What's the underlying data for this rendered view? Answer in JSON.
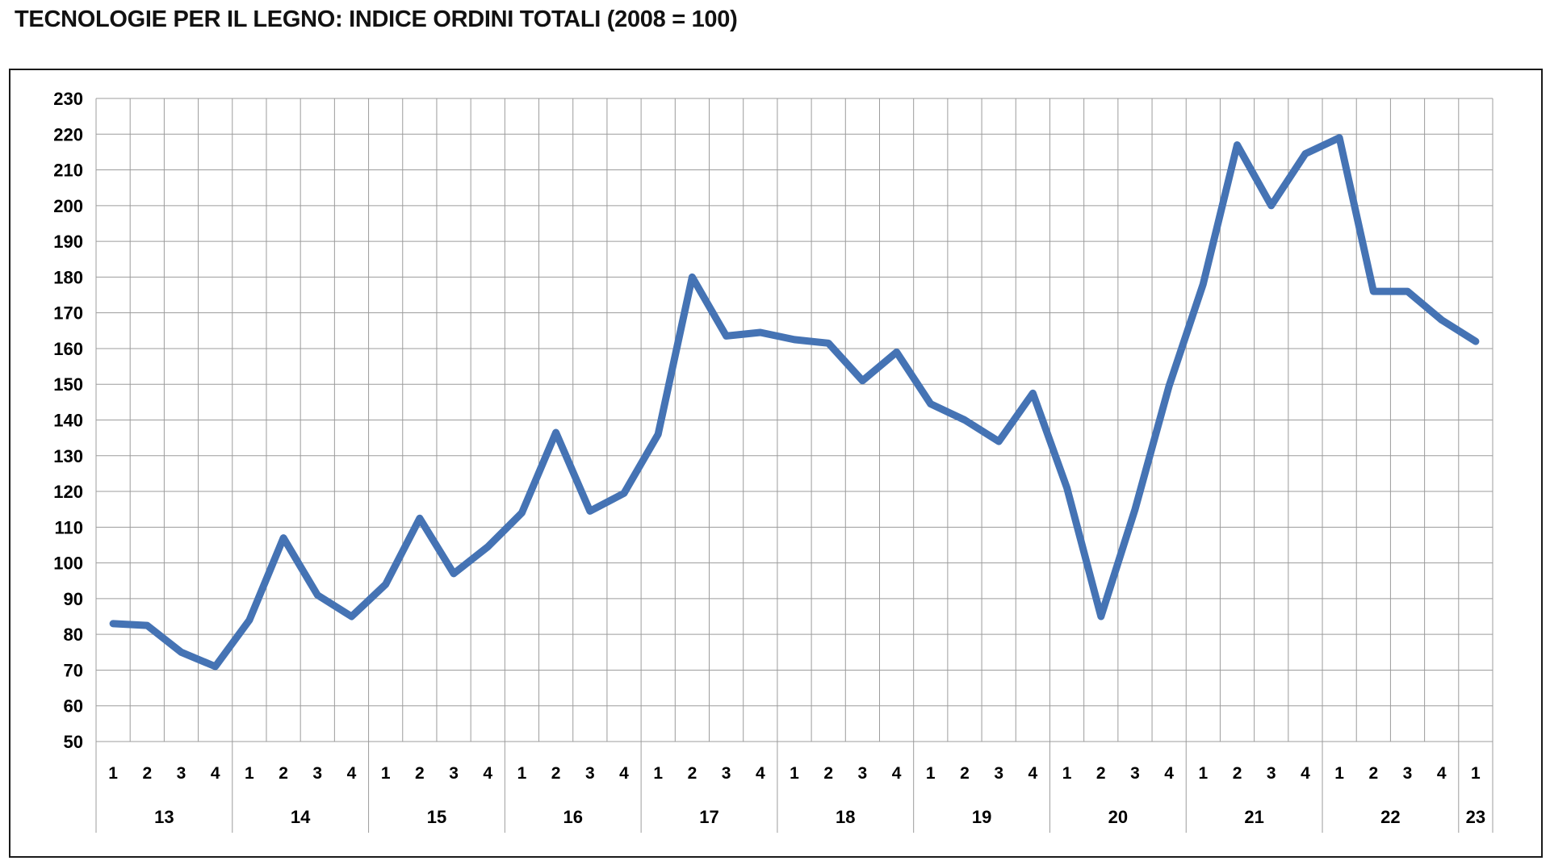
{
  "title": "TECNOLOGIE PER IL LEGNO: INDICE ORDINI TOTALI (2008 = 100)",
  "colors": {
    "line": "#4573B4",
    "grid": "#9C9C9C",
    "border": "#1A1A1A",
    "background": "#FFFFFF",
    "label": "#000000"
  },
  "chart_data": {
    "type": "line",
    "title": "TECNOLOGIE PER IL LEGNO: INDICE ORDINI TOTALI (2008 = 100)",
    "xlabel": "",
    "ylabel": "",
    "ylim": [
      50,
      230
    ],
    "grid": true,
    "legend_position": "none",
    "y_ticks": [
      230,
      220,
      210,
      200,
      190,
      180,
      170,
      160,
      150,
      140,
      130,
      120,
      110,
      100,
      90,
      80,
      70,
      60,
      50
    ],
    "x_groups": [
      {
        "year": "13",
        "quarters": [
          "1",
          "2",
          "3",
          "4"
        ]
      },
      {
        "year": "14",
        "quarters": [
          "1",
          "2",
          "3",
          "4"
        ]
      },
      {
        "year": "15",
        "quarters": [
          "1",
          "2",
          "3",
          "4"
        ]
      },
      {
        "year": "16",
        "quarters": [
          "1",
          "2",
          "3",
          "4"
        ]
      },
      {
        "year": "17",
        "quarters": [
          "1",
          "2",
          "3",
          "4"
        ]
      },
      {
        "year": "18",
        "quarters": [
          "1",
          "2",
          "3",
          "4"
        ]
      },
      {
        "year": "19",
        "quarters": [
          "1",
          "2",
          "3",
          "4"
        ]
      },
      {
        "year": "20",
        "quarters": [
          "1",
          "2",
          "3",
          "4"
        ]
      },
      {
        "year": "21",
        "quarters": [
          "1",
          "2",
          "3",
          "4"
        ]
      },
      {
        "year": "22",
        "quarters": [
          "1",
          "2",
          "3",
          "4"
        ]
      },
      {
        "year": "23",
        "quarters": [
          "1"
        ]
      }
    ],
    "series": [
      {
        "name": "Indice ordini totali (2008 = 100)",
        "color": "#4573B4",
        "values": [
          83,
          82.5,
          75,
          71,
          84,
          107,
          91,
          85,
          94,
          112.5,
          97,
          104.5,
          114,
          136.5,
          114.5,
          119.5,
          136,
          180,
          163.5,
          164.5,
          162.5,
          161.5,
          151,
          159,
          144.5,
          140,
          134,
          147.5,
          121,
          85,
          115,
          149.5,
          178,
          217,
          200,
          214.5,
          219,
          176,
          176,
          168,
          162
        ]
      }
    ]
  }
}
